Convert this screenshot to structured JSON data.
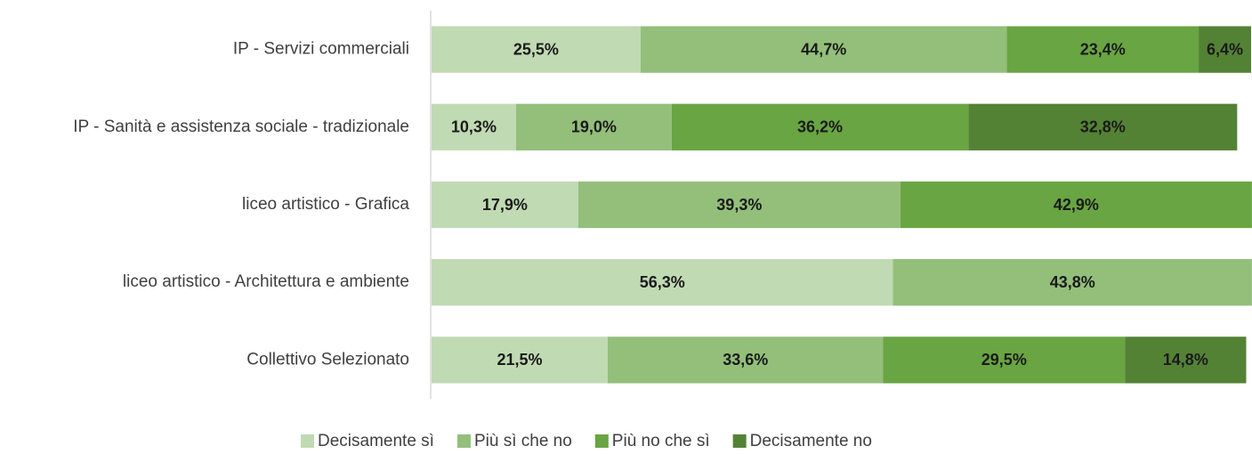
{
  "chart_data": {
    "type": "stacked-bar-horizontal",
    "categories": [
      "IP - Servizi commerciali",
      "IP - Sanità e assistenza sociale - tradizionale",
      "liceo artistico - Grafica",
      "liceo artistico - Architettura e ambiente",
      "Collettivo Selezionato"
    ],
    "xlim": [
      0,
      100
    ],
    "legend": "bottom",
    "series": [
      {
        "name": "Decisamente sì",
        "color": "#c0dab3",
        "values": [
          25.5,
          10.3,
          17.9,
          56.3,
          21.5
        ],
        "value_labels": [
          "25,5%",
          "10,3%",
          "17,9%",
          "56,3%",
          "21,5%"
        ]
      },
      {
        "name": "Più sì che no",
        "color": "#93bf7a",
        "values": [
          44.7,
          19.0,
          39.3,
          43.8,
          33.6
        ],
        "value_labels": [
          "44,7%",
          "19,0%",
          "39,3%",
          "43,8%",
          "33,6%"
        ]
      },
      {
        "name": "Più no che sì",
        "color": "#69a542",
        "values": [
          23.4,
          36.2,
          42.9,
          null,
          29.5
        ],
        "value_labels": [
          "23,4%",
          "36,2%",
          "42,9%",
          null,
          "29,5%"
        ]
      },
      {
        "name": "Decisamente no",
        "color": "#548235",
        "values": [
          6.4,
          32.8,
          null,
          null,
          14.8
        ],
        "value_labels": [
          "6,4%",
          "32,8%",
          null,
          null,
          "14,8%"
        ]
      }
    ]
  }
}
